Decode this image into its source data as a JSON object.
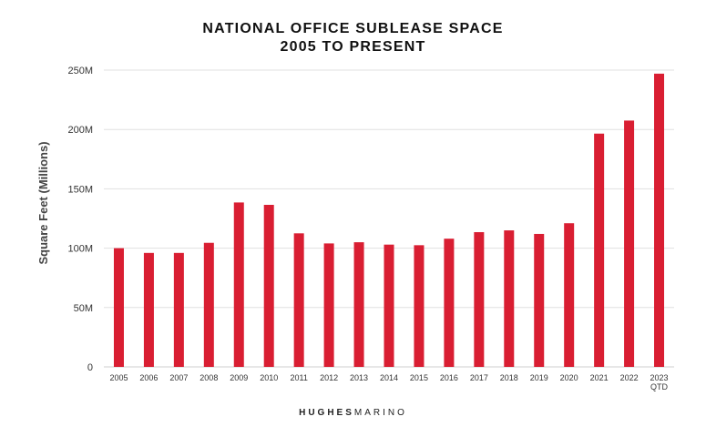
{
  "brand": {
    "part1": "HUGHES",
    "part2": "MARINO"
  },
  "chart_data": {
    "type": "bar",
    "title": [
      "NATIONAL OFFICE SUBLEASE SPACE",
      "2005 TO PRESENT"
    ],
    "xlabel": "",
    "ylabel": "Square Feet (Millions)",
    "categories": [
      [
        "2005"
      ],
      [
        "2006"
      ],
      [
        "2007"
      ],
      [
        "2008"
      ],
      [
        "2009"
      ],
      [
        "2010"
      ],
      [
        "2011"
      ],
      [
        "2012"
      ],
      [
        "2013"
      ],
      [
        "2014"
      ],
      [
        "2015"
      ],
      [
        "2016"
      ],
      [
        "2017"
      ],
      [
        "2018"
      ],
      [
        "2019"
      ],
      [
        "2020"
      ],
      [
        "2021"
      ],
      [
        "2022"
      ],
      [
        "2023",
        "QTD"
      ]
    ],
    "values": [
      100,
      96,
      96,
      104.5,
      138.5,
      136.5,
      112.5,
      104,
      105,
      103,
      102.5,
      108,
      113.5,
      115,
      112,
      121,
      196.5,
      207.5,
      247
    ],
    "value_units": "millions of square feet",
    "ylim": [
      0,
      250
    ],
    "yticks": [
      0,
      50,
      100,
      150,
      200,
      250
    ],
    "ytick_labels": [
      "0",
      "50M",
      "100M",
      "150M",
      "200M",
      "250M"
    ],
    "grid": true,
    "legend": "none",
    "colors": {
      "bar": "#d91e32",
      "grid": "#e1e1e1",
      "axis": "#cfcfcf"
    }
  }
}
